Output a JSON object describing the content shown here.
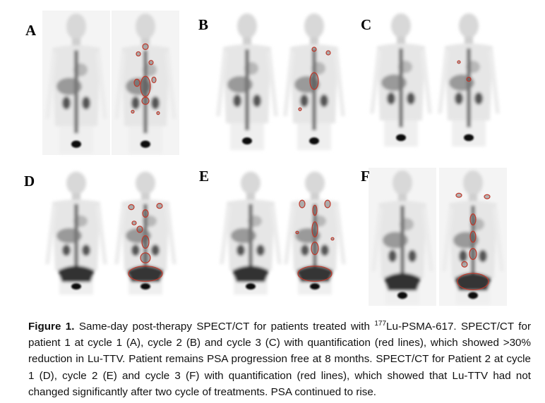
{
  "panels": [
    {
      "label": "A"
    },
    {
      "label": "B"
    },
    {
      "label": "C"
    },
    {
      "label": "D"
    },
    {
      "label": "E"
    },
    {
      "label": "F"
    }
  ],
  "caption": {
    "label": "Figure 1.",
    "text_before": " Same-day post-therapy SPECT/CT for patients treated with ",
    "superscript": "177",
    "text_after": "Lu-PSMA-617. SPECT/CT for patient 1 at cycle 1 (A), cycle 2 (B) and cycle 3 (C) with quantification (red lines), which showed >30% reduction in Lu-TTV. Patient remains PSA progression free at 8 months. SPECT/CT for Patient 2 at cycle 1 (D), cycle 2 (E) and cycle 3 (F) with quantification (red lines), which showed that Lu-TTV had not changed significantly after two cycle of treatments. PSA continued to rise."
  }
}
